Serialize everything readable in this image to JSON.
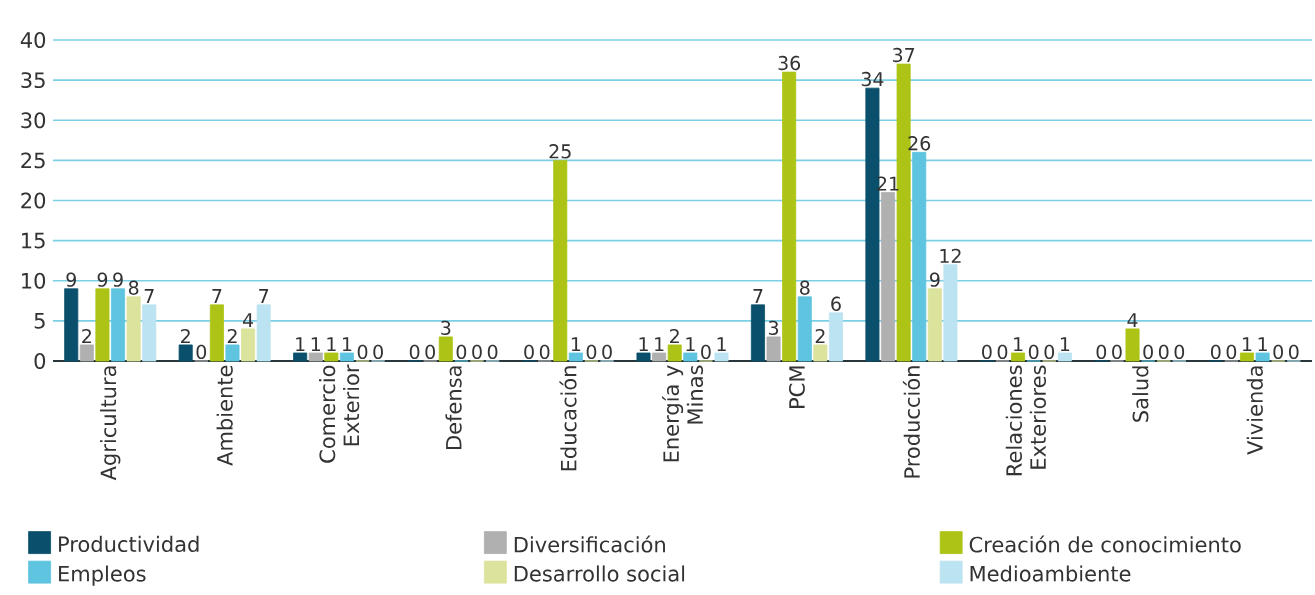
{
  "chart_data": {
    "type": "bar",
    "categories": [
      "Agricultura",
      "Ambiente",
      "Comercio Exterior",
      "Defensa",
      "Educación",
      "Energía y Minas",
      "PCM",
      "Producción",
      "Relaciones Exteriores",
      "Salud",
      "Vivienda"
    ],
    "series": [
      {
        "name": "Productividad",
        "color": "#0a4f6b",
        "values": [
          9,
          2,
          1,
          0,
          0,
          1,
          7,
          34,
          0,
          0,
          0
        ]
      },
      {
        "name": "Diversificación",
        "color": "#b0b0b0",
        "values": [
          2,
          0,
          1,
          0,
          0,
          1,
          3,
          21,
          0,
          0,
          0
        ]
      },
      {
        "name": "Creación de conocimiento",
        "color": "#adc416",
        "values": [
          9,
          7,
          1,
          3,
          25,
          2,
          36,
          37,
          1,
          4,
          1
        ]
      },
      {
        "name": "Empleos",
        "color": "#5ec4e0",
        "values": [
          9,
          2,
          1,
          0,
          1,
          1,
          8,
          26,
          0,
          0,
          1
        ]
      },
      {
        "name": "Desarrollo social",
        "color": "#dbe39c",
        "values": [
          8,
          4,
          0,
          0,
          0,
          0,
          2,
          9,
          0,
          0,
          0
        ]
      },
      {
        "name": "Medioambiente",
        "color": "#bce3f1",
        "values": [
          7,
          7,
          0,
          0,
          0,
          1,
          6,
          12,
          1,
          0,
          0
        ]
      }
    ],
    "ylim": [
      0,
      40
    ],
    "yticks": [
      0,
      5,
      10,
      15,
      20,
      25,
      30,
      35,
      40
    ],
    "grid": "y",
    "legend": "bottom",
    "data_labels": true
  }
}
